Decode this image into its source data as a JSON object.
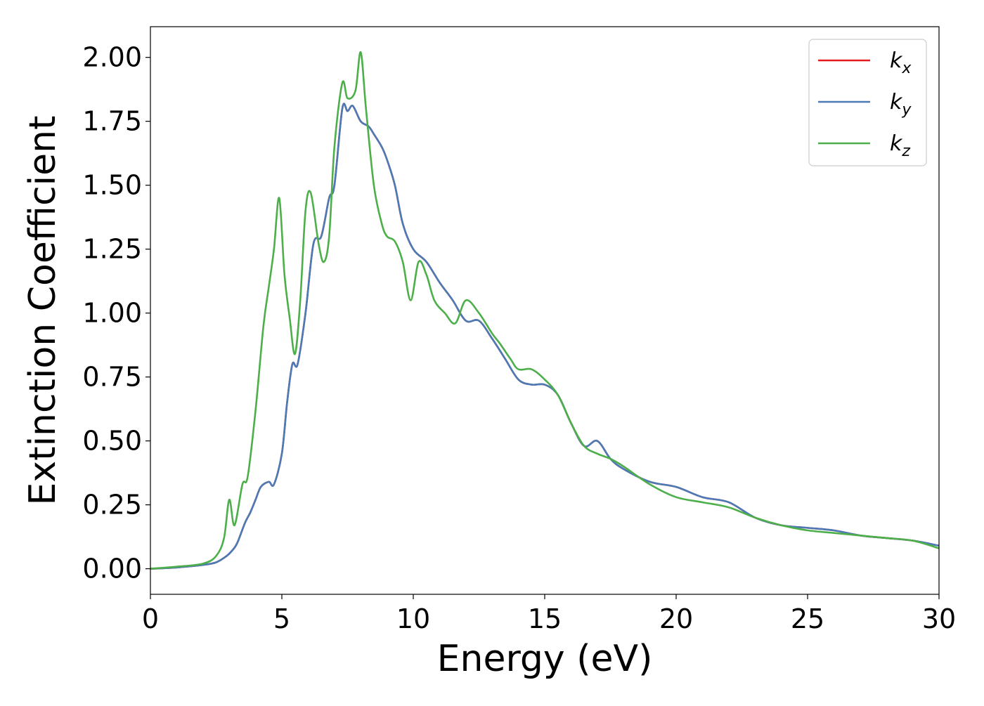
{
  "chart_data": {
    "type": "line",
    "xlabel": "Energy (eV)",
    "ylabel": "Extinction Coefficient",
    "xlim": [
      0,
      30
    ],
    "ylim": [
      -0.1,
      2.12
    ],
    "xticks": [
      0,
      5,
      10,
      15,
      20,
      25,
      30
    ],
    "xtick_labels": [
      "0",
      "5",
      "10",
      "15",
      "20",
      "25",
      "30"
    ],
    "yticks": [
      0,
      0.25,
      0.5,
      0.75,
      1.0,
      1.25,
      1.5,
      1.75,
      2.0
    ],
    "ytick_labels": [
      "0.00",
      "0.25",
      "0.50",
      "0.75",
      "1.00",
      "1.25",
      "1.50",
      "1.75",
      "2.00"
    ],
    "grid": false,
    "legend_position": "top-right",
    "series": [
      {
        "name": "k_x",
        "legend_main": "k",
        "legend_sub": "x",
        "color": "#e41a1c",
        "x": [
          0,
          1,
          2,
          2.5,
          2.9,
          3.1,
          3.3,
          3.6,
          3.8,
          4.0,
          4.2,
          4.5,
          4.7,
          5.0,
          5.2,
          5.4,
          5.6,
          5.9,
          6.2,
          6.5,
          6.8,
          7.0,
          7.3,
          7.5,
          7.7,
          8.0,
          8.3,
          8.5,
          8.8,
          9.0,
          9.3,
          9.6,
          10.0,
          10.5,
          11.0,
          11.5,
          12.0,
          12.5,
          13.0,
          13.5,
          14.0,
          14.5,
          15.0,
          15.5,
          16.0,
          16.5,
          17.0,
          17.5,
          18.0,
          19.0,
          20.0,
          21.0,
          22.0,
          23.0,
          24.0,
          25.0,
          26.0,
          27.0,
          28.0,
          29.0,
          30.0
        ],
        "y": [
          0,
          0.005,
          0.015,
          0.025,
          0.05,
          0.07,
          0.1,
          0.18,
          0.22,
          0.27,
          0.32,
          0.34,
          0.33,
          0.45,
          0.65,
          0.8,
          0.8,
          1.0,
          1.27,
          1.3,
          1.45,
          1.5,
          1.8,
          1.79,
          1.81,
          1.75,
          1.73,
          1.7,
          1.65,
          1.6,
          1.5,
          1.35,
          1.25,
          1.2,
          1.12,
          1.05,
          0.97,
          0.97,
          0.9,
          0.82,
          0.74,
          0.72,
          0.72,
          0.68,
          0.57,
          0.48,
          0.5,
          0.43,
          0.39,
          0.34,
          0.32,
          0.28,
          0.26,
          0.2,
          0.17,
          0.16,
          0.15,
          0.13,
          0.12,
          0.11,
          0.09
        ]
      },
      {
        "name": "k_y",
        "legend_main": "k",
        "legend_sub": "y",
        "color": "#4a7bb7",
        "x": [
          0,
          1,
          2,
          2.5,
          2.9,
          3.1,
          3.3,
          3.6,
          3.8,
          4.0,
          4.2,
          4.5,
          4.7,
          5.0,
          5.2,
          5.4,
          5.6,
          5.9,
          6.2,
          6.5,
          6.8,
          7.0,
          7.3,
          7.5,
          7.7,
          8.0,
          8.3,
          8.5,
          8.8,
          9.0,
          9.3,
          9.6,
          10.0,
          10.5,
          11.0,
          11.5,
          12.0,
          12.5,
          13.0,
          13.5,
          14.0,
          14.5,
          15.0,
          15.5,
          16.0,
          16.5,
          17.0,
          17.5,
          18.0,
          19.0,
          20.0,
          21.0,
          22.0,
          23.0,
          24.0,
          25.0,
          26.0,
          27.0,
          28.0,
          29.0,
          30.0
        ],
        "y": [
          0,
          0.005,
          0.015,
          0.025,
          0.05,
          0.07,
          0.1,
          0.18,
          0.22,
          0.27,
          0.32,
          0.34,
          0.33,
          0.45,
          0.65,
          0.8,
          0.8,
          1.0,
          1.27,
          1.3,
          1.45,
          1.5,
          1.8,
          1.79,
          1.81,
          1.75,
          1.73,
          1.7,
          1.65,
          1.6,
          1.5,
          1.35,
          1.25,
          1.2,
          1.12,
          1.05,
          0.97,
          0.97,
          0.9,
          0.82,
          0.74,
          0.72,
          0.72,
          0.68,
          0.57,
          0.48,
          0.5,
          0.43,
          0.39,
          0.34,
          0.32,
          0.28,
          0.26,
          0.2,
          0.17,
          0.16,
          0.15,
          0.13,
          0.12,
          0.11,
          0.09
        ]
      },
      {
        "name": "k_z",
        "legend_main": "k",
        "legend_sub": "z",
        "color": "#4daf4a",
        "x": [
          0,
          1,
          2,
          2.5,
          2.8,
          3.0,
          3.2,
          3.5,
          3.7,
          4.0,
          4.3,
          4.5,
          4.7,
          4.9,
          5.1,
          5.3,
          5.5,
          5.7,
          5.9,
          6.1,
          6.4,
          6.6,
          6.8,
          7.0,
          7.3,
          7.5,
          7.8,
          8.0,
          8.2,
          8.5,
          8.8,
          9.0,
          9.3,
          9.6,
          9.9,
          10.2,
          10.5,
          10.8,
          11.2,
          11.6,
          12.0,
          12.5,
          13.0,
          13.3,
          13.7,
          14.0,
          14.5,
          15.0,
          15.5,
          16.0,
          16.5,
          17.0,
          17.5,
          18.0,
          19.0,
          20.0,
          21.0,
          22.0,
          23.0,
          24.0,
          25.0,
          26.0,
          27.0,
          28.0,
          29.0,
          30.0
        ],
        "y": [
          0,
          0.008,
          0.02,
          0.05,
          0.12,
          0.27,
          0.17,
          0.33,
          0.36,
          0.62,
          0.95,
          1.1,
          1.25,
          1.45,
          1.15,
          0.98,
          0.84,
          1.05,
          1.4,
          1.47,
          1.27,
          1.2,
          1.3,
          1.65,
          1.9,
          1.84,
          1.87,
          2.02,
          1.8,
          1.5,
          1.35,
          1.3,
          1.28,
          1.2,
          1.05,
          1.2,
          1.15,
          1.05,
          1.0,
          0.96,
          1.05,
          1.0,
          0.92,
          0.88,
          0.82,
          0.78,
          0.78,
          0.74,
          0.68,
          0.57,
          0.48,
          0.45,
          0.43,
          0.4,
          0.33,
          0.28,
          0.26,
          0.24,
          0.2,
          0.17,
          0.15,
          0.14,
          0.13,
          0.12,
          0.11,
          0.08
        ]
      }
    ]
  }
}
